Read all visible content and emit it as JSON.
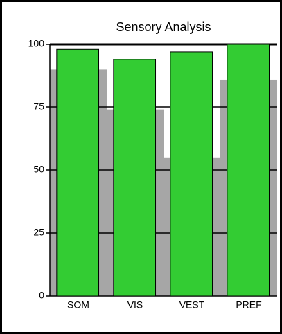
{
  "chart_data": {
    "type": "bar",
    "title": "Sensory Analysis",
    "categories": [
      "SOM",
      "VIS",
      "VEST",
      "PREF"
    ],
    "series": [
      {
        "color": "#a6a6a6",
        "values": [
          90,
          74,
          55,
          86
        ]
      },
      {
        "color": "#33cc33",
        "values": [
          98,
          94,
          97,
          100
        ]
      }
    ],
    "ylim": [
      0,
      100
    ],
    "yticks": [
      0,
      25,
      50,
      75,
      100
    ],
    "grid": true
  }
}
